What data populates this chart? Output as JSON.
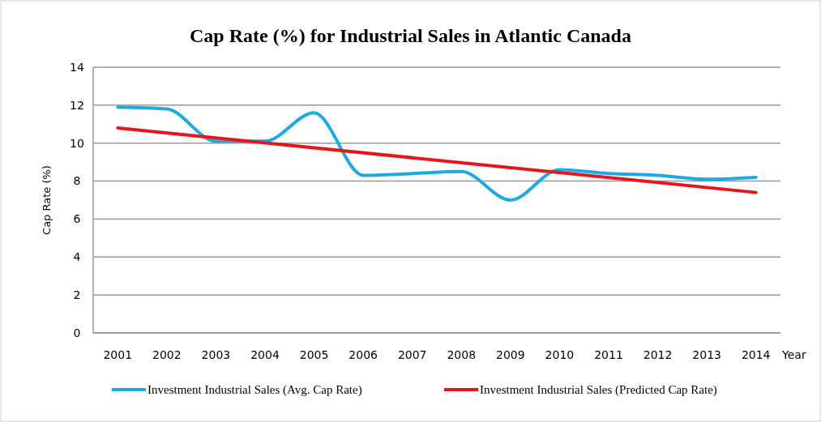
{
  "chart_data": {
    "type": "line",
    "title": "Cap Rate (%)  for Industrial Sales in Atlantic Canada",
    "ylabel": "Cap Rate (%)",
    "xlabel": "Year",
    "xlim": [
      2000.5,
      2014.5
    ],
    "xticks": [
      2001,
      2002,
      2003,
      2004,
      2005,
      2006,
      2007,
      2008,
      2009,
      2010,
      2011,
      2012,
      2013,
      2014
    ],
    "ylim": [
      0,
      14
    ],
    "yticks": [
      0,
      2,
      4,
      6,
      8,
      10,
      12,
      14
    ],
    "grid": "y",
    "legend": "bottom",
    "line_style": "solid",
    "marker": "none",
    "series": [
      {
        "name": "Investment Industrial Sales (Avg. Cap Rate)",
        "color": "#1fa9e1",
        "x": [
          2001,
          2002,
          2003,
          2004,
          2005,
          2006,
          2007,
          2008,
          2009,
          2010,
          2011,
          2012,
          2013,
          2014
        ],
        "values": [
          11.9,
          11.8,
          10.1,
          10.1,
          11.6,
          8.3,
          8.4,
          8.5,
          7.0,
          8.6,
          8.4,
          8.3,
          8.1,
          8.2
        ]
      },
      {
        "name": "Investment Industrial Sales (Predicted Cap Rate)",
        "color": "#e8161b",
        "x": [
          2001,
          2014
        ],
        "values": [
          10.8,
          7.4
        ]
      }
    ]
  }
}
